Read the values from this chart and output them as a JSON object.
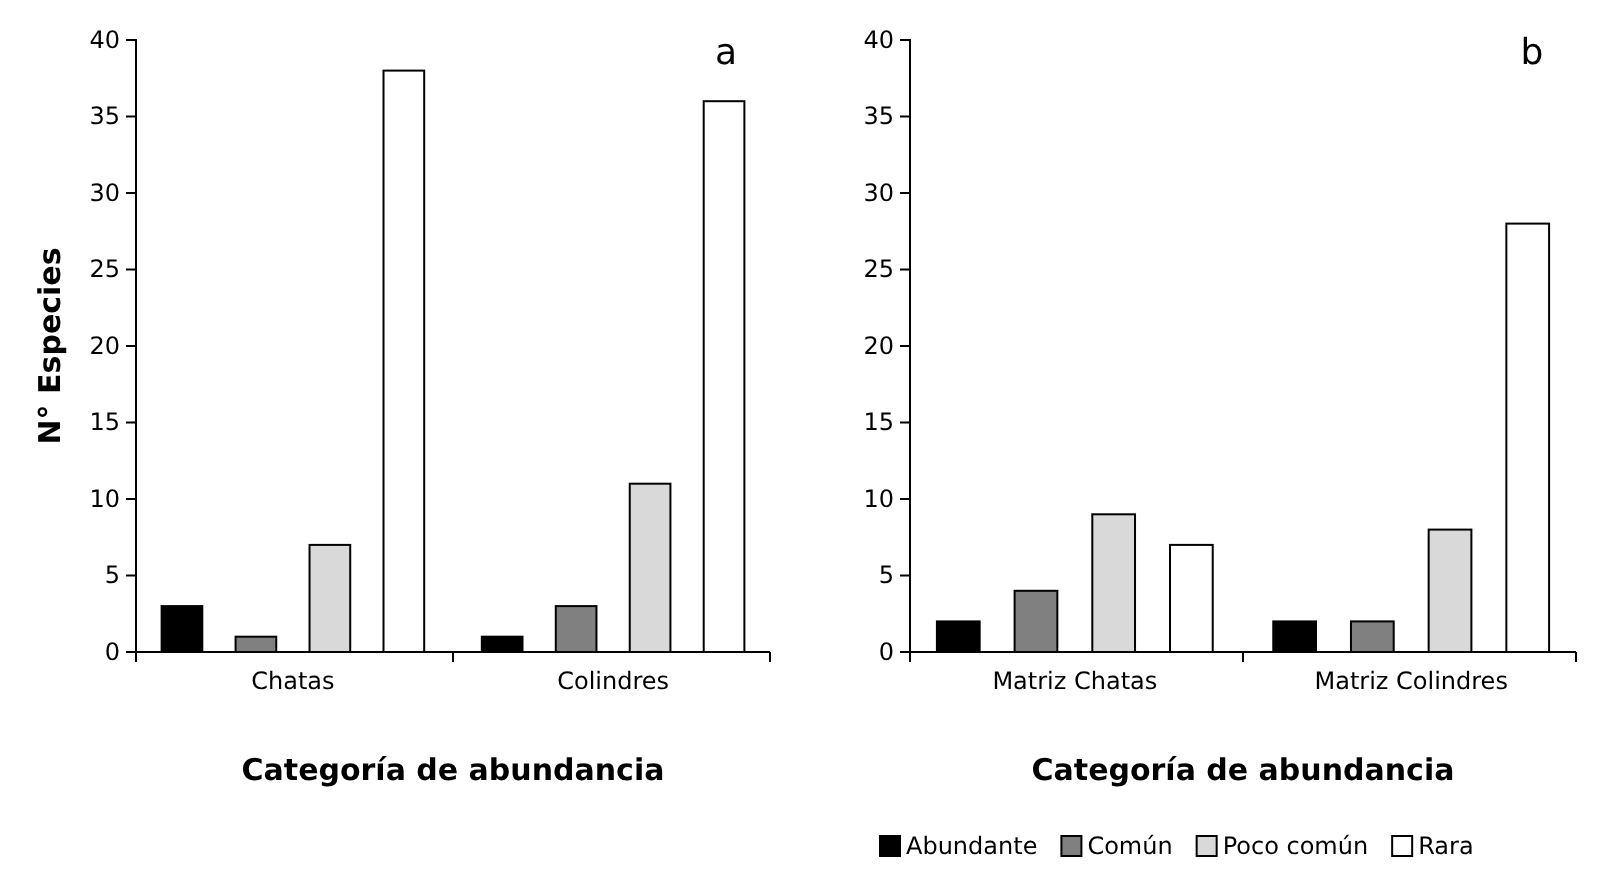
{
  "chart_data": [
    {
      "type": "bar",
      "ylabel": "N° Especies",
      "xlabel": "Categoría de abundancia",
      "annotations": [
        "a"
      ],
      "categories": [
        "Chatas",
        "Colindres"
      ],
      "ylim": [
        0,
        40
      ],
      "yticks": [
        0,
        5,
        10,
        15,
        20,
        25,
        30,
        35,
        40
      ],
      "series": [
        {
          "color": "#000000",
          "values": [
            3,
            1
          ]
        },
        {
          "color": "#808080",
          "values": [
            1,
            3
          ]
        },
        {
          "color": "#d9d9d9",
          "values": [
            7,
            11
          ]
        },
        {
          "color": "#ffffff",
          "values": [
            38,
            36
          ]
        }
      ]
    },
    {
      "type": "bar",
      "xlabel": "Categoría de abundancia",
      "annotations": [
        "b"
      ],
      "categories": [
        "Matriz Chatas",
        "Matriz Colindres"
      ],
      "ylim": [
        0,
        40
      ],
      "yticks": [
        0,
        5,
        10,
        15,
        20,
        25,
        30,
        35,
        40
      ],
      "legend": "bottom",
      "series": [
        {
          "name": "Abundante",
          "color": "#000000",
          "values": [
            2,
            2
          ]
        },
        {
          "name": "Común",
          "color": "#808080",
          "values": [
            4,
            2
          ]
        },
        {
          "name": "Poco común",
          "color": "#d9d9d9",
          "values": [
            9,
            8
          ]
        },
        {
          "name": "Rara",
          "color": "#ffffff",
          "values": [
            7,
            28
          ]
        }
      ]
    }
  ]
}
